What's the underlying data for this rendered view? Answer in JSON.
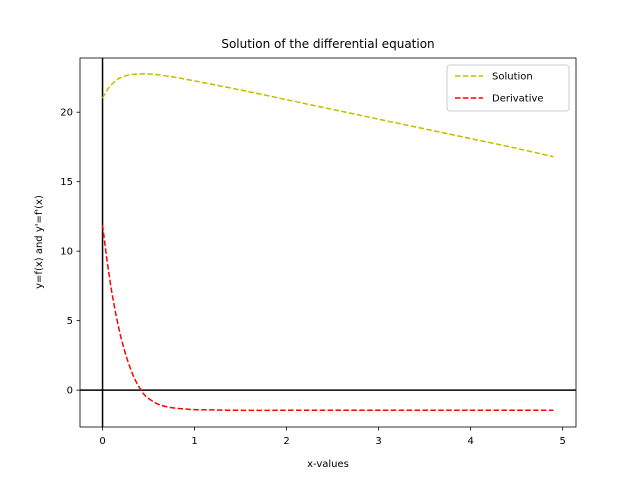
{
  "chart_data": {
    "type": "line",
    "title": "Solution of the differential equation",
    "xlabel": "x-values",
    "ylabel": "y=f(x) and y'=f'(x)",
    "xlim": [
      -0.245,
      5.145
    ],
    "ylim": [
      -2.65,
      23.9
    ],
    "xticks": [
      0,
      1,
      2,
      3,
      4,
      5
    ],
    "yticks": [
      0,
      5,
      10,
      15,
      20
    ],
    "grid": false,
    "legend_position": "top-right",
    "reference_lines": {
      "x": 0,
      "y": 0,
      "color": "#000000"
    },
    "series": [
      {
        "name": "Solution",
        "color": "#bfbf00",
        "style": "dashed",
        "x": [
          0,
          0.05,
          0.1,
          0.15,
          0.2,
          0.3,
          0.4,
          0.5,
          0.6,
          0.7,
          0.8,
          1.0,
          1.5,
          2.0,
          2.5,
          3.0,
          3.5,
          4.0,
          4.5,
          4.9
        ],
        "y": [
          21.0,
          21.6,
          22.0,
          22.3,
          22.5,
          22.7,
          22.75,
          22.75,
          22.7,
          22.6,
          22.5,
          22.25,
          21.6,
          20.9,
          20.2,
          19.5,
          18.8,
          18.1,
          17.4,
          16.8
        ]
      },
      {
        "name": "Derivative",
        "color": "#ff0000",
        "style": "dashed",
        "x": [
          0,
          0.05,
          0.1,
          0.15,
          0.2,
          0.25,
          0.3,
          0.35,
          0.4,
          0.45,
          0.5,
          0.6,
          0.7,
          0.8,
          0.9,
          1.0,
          1.2,
          1.5,
          2.0,
          3.0,
          4.0,
          4.9
        ],
        "y": [
          11.9,
          9.3,
          7.1,
          5.3,
          3.8,
          2.6,
          1.6,
          0.8,
          0.2,
          -0.3,
          -0.6,
          -1.0,
          -1.2,
          -1.3,
          -1.35,
          -1.4,
          -1.42,
          -1.45,
          -1.45,
          -1.45,
          -1.45,
          -1.45
        ]
      }
    ]
  }
}
